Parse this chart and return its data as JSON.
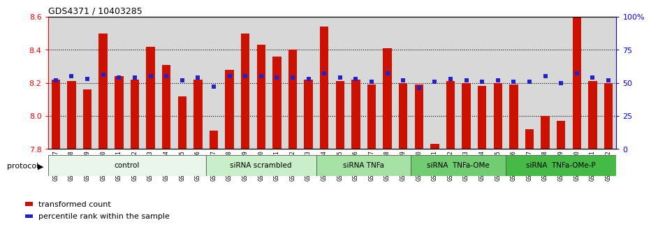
{
  "title": "GDS4371 / 10403285",
  "samples": [
    "GSM790907",
    "GSM790908",
    "GSM790909",
    "GSM790910",
    "GSM790911",
    "GSM790912",
    "GSM790913",
    "GSM790914",
    "GSM790915",
    "GSM790916",
    "GSM790917",
    "GSM790918",
    "GSM790919",
    "GSM790920",
    "GSM790921",
    "GSM790922",
    "GSM790923",
    "GSM790924",
    "GSM790925",
    "GSM790926",
    "GSM790927",
    "GSM790928",
    "GSM790929",
    "GSM790930",
    "GSM790931",
    "GSM790932",
    "GSM790933",
    "GSM790934",
    "GSM790935",
    "GSM790936",
    "GSM790937",
    "GSM790938",
    "GSM790939",
    "GSM790940",
    "GSM790941",
    "GSM790942"
  ],
  "red_values": [
    8.22,
    8.21,
    8.16,
    8.5,
    8.24,
    8.22,
    8.42,
    8.31,
    8.12,
    8.22,
    7.91,
    8.28,
    8.5,
    8.43,
    8.36,
    8.4,
    8.22,
    8.54,
    8.21,
    8.22,
    8.19,
    8.41,
    8.2,
    8.19,
    7.83,
    8.21,
    8.2,
    8.18,
    8.2,
    8.19,
    7.92,
    8.0,
    7.97,
    8.65,
    8.21,
    8.2
  ],
  "blue_values": [
    52,
    55,
    53,
    56,
    54,
    54,
    55,
    55,
    52,
    54,
    47,
    55,
    55,
    55,
    54,
    54,
    53,
    57,
    54,
    53,
    51,
    57,
    52,
    46,
    51,
    53,
    52,
    51,
    52,
    51,
    51,
    55,
    50,
    57,
    54,
    52
  ],
  "groups": [
    {
      "label": "control",
      "start": 0,
      "end": 10,
      "color": "#e8f5e9"
    },
    {
      "label": "siRNA scrambled",
      "start": 10,
      "end": 17,
      "color": "#c8efc8"
    },
    {
      "label": "siRNA TNFa",
      "start": 17,
      "end": 23,
      "color": "#a5e0a5"
    },
    {
      "label": "siRNA  TNFa-OMe",
      "start": 23,
      "end": 29,
      "color": "#72cc72"
    },
    {
      "label": "siRNA  TNFa-OMe-P",
      "start": 29,
      "end": 36,
      "color": "#44bb44"
    }
  ],
  "ylim_left": [
    7.8,
    8.6
  ],
  "ylim_right": [
    0,
    100
  ],
  "yticks_left": [
    7.8,
    8.0,
    8.2,
    8.4,
    8.6
  ],
  "yticks_right": [
    0,
    25,
    50,
    75,
    100
  ],
  "ytick_right_labels": [
    "0",
    "25",
    "50",
    "75",
    "100%"
  ],
  "bar_color": "#cc1100",
  "dot_color": "#2222cc",
  "plot_bg_color": "#d8d8d8",
  "legend_items": [
    "transformed count",
    "percentile rank within the sample"
  ]
}
